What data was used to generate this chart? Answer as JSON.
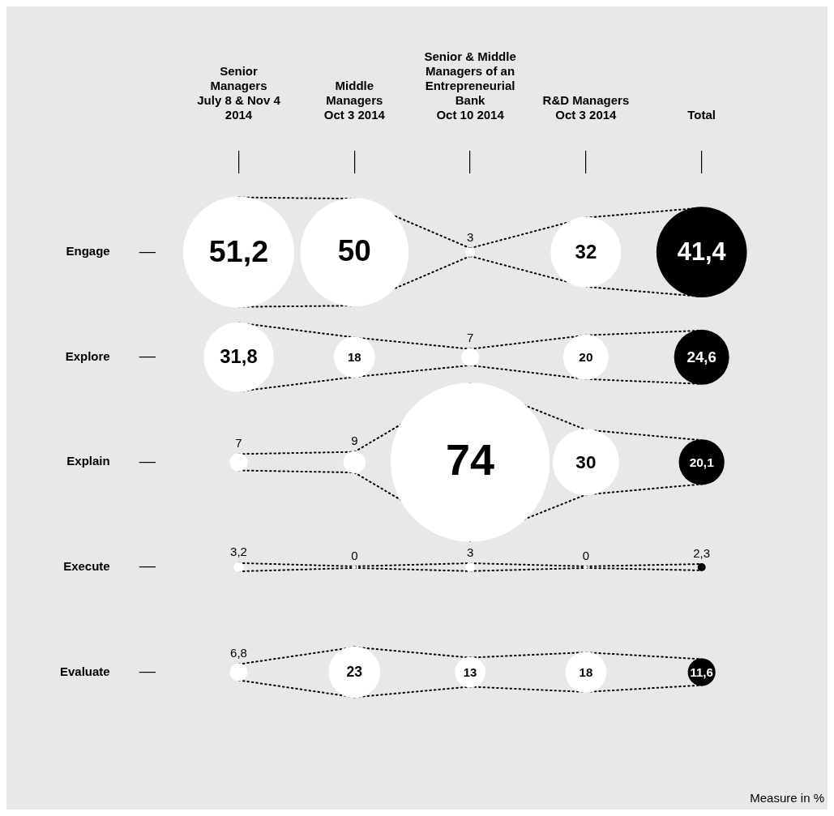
{
  "chart_data": {
    "type": "other",
    "categories": [
      "Senior\nManagers\nJuly 8 & Nov 4\n2014",
      "Middle\nManagers\nOct 3 2014",
      "Senior & Middle\nManagers of an\nEntrepreneurial\nBank\nOct 10 2014",
      "R&D Managers\nOct 3 2014",
      "Total"
    ],
    "y_categories": [
      "Engage",
      "Explore",
      "Explain",
      "Execute",
      "Evaluate"
    ],
    "series": [
      {
        "colors": [
          "#ffffff",
          "#ffffff",
          "#ffffff",
          "#ffffff",
          "#000000"
        ],
        "values": [
          51.2,
          50,
          3,
          32,
          41.4
        ],
        "value_labels": [
          "51,2",
          "50",
          "3",
          "32",
          "41,4"
        ]
      },
      {
        "colors": [
          "#ffffff",
          "#ffffff",
          "#ffffff",
          "#ffffff",
          "#000000"
        ],
        "values": [
          31.8,
          18,
          7,
          20,
          24.6
        ],
        "value_labels": [
          "31,8",
          "18",
          "7",
          "20",
          "24,6"
        ]
      },
      {
        "colors": [
          "#ffffff",
          "#ffffff",
          "#ffffff",
          "#ffffff",
          "#000000"
        ],
        "values": [
          7,
          9,
          74,
          30,
          20.1
        ],
        "value_labels": [
          "7",
          "9",
          "74",
          "30",
          "20,1"
        ]
      },
      {
        "colors": [
          "#ffffff",
          "#ffffff",
          "#ffffff",
          "#ffffff",
          "#000000"
        ],
        "values": [
          3.2,
          0,
          3,
          0,
          2.3
        ],
        "value_labels": [
          "3,2",
          "0",
          "3",
          "0",
          "2,3"
        ]
      },
      {
        "colors": [
          "#ffffff",
          "#ffffff",
          "#ffffff",
          "#ffffff",
          "#000000"
        ],
        "values": [
          6.8,
          23,
          13,
          18,
          11.6
        ],
        "value_labels": [
          "6,8",
          "23",
          "13",
          "18",
          "11,6"
        ]
      }
    ],
    "legend": false,
    "annotations": [
      "Measure in %"
    ]
  }
}
